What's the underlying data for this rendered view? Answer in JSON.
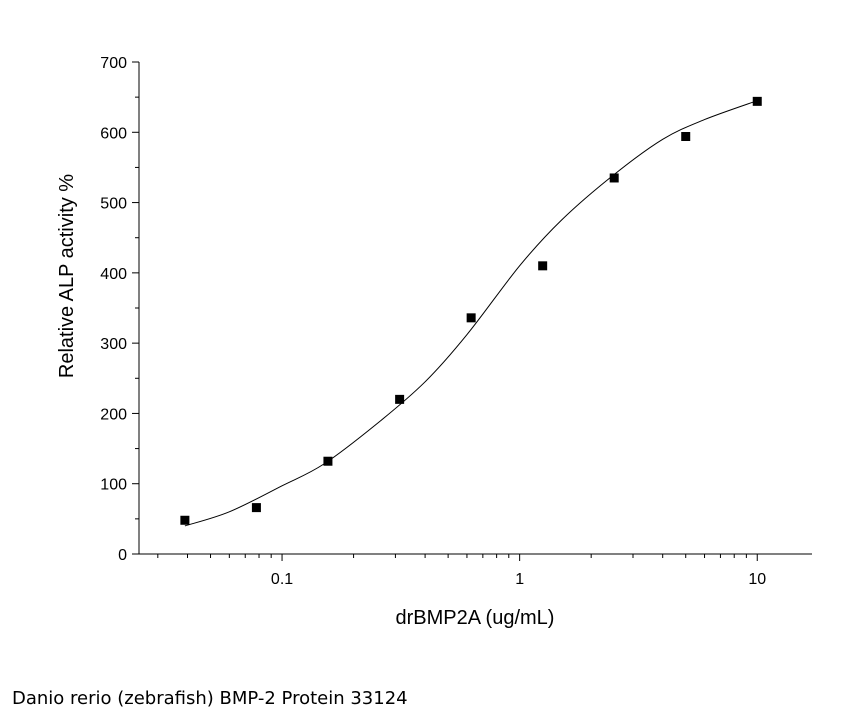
{
  "chart_data": {
    "type": "scatter",
    "title": "",
    "xlabel": "drBMP2A  (ug/mL)",
    "ylabel": "Relative ALP activity %",
    "x_scale": "log",
    "xlim": [
      0.025,
      17
    ],
    "ylim": [
      0,
      700
    ],
    "x_ticks": [
      0.1,
      1,
      10
    ],
    "x_tick_labels": [
      "0.1",
      "1",
      "10"
    ],
    "y_ticks": [
      0,
      100,
      200,
      300,
      400,
      500,
      600,
      700
    ],
    "y_tick_labels": [
      "0",
      "100",
      "200",
      "300",
      "400",
      "500",
      "600",
      "700"
    ],
    "grid": false,
    "legend": "none",
    "series": [
      {
        "marker": "square",
        "color": "#000000",
        "x": [
          0.039,
          0.078,
          0.156,
          0.3125,
          0.625,
          1.25,
          2.5,
          5,
          10
        ],
        "y": [
          48,
          66,
          132,
          220,
          336,
          410,
          535,
          594,
          644
        ]
      }
    ],
    "fit_curve": {
      "type": "logistic",
      "color": "#000000",
      "x": [
        0.039,
        0.06,
        0.1,
        0.15,
        0.25,
        0.4,
        0.6,
        1,
        1.5,
        2.5,
        4,
        6,
        10
      ],
      "y": [
        40,
        60,
        97,
        128,
        185,
        245,
        312,
        410,
        475,
        540,
        590,
        618,
        645
      ]
    }
  },
  "caption": "Danio rerio (zebrafish) BMP-2 Protein 33124"
}
